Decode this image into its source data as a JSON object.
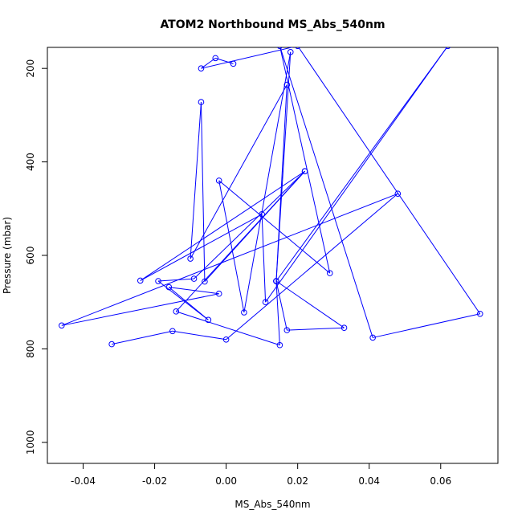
{
  "chart_data": {
    "type": "line",
    "title": "ATOM2 Northbound MS_Abs_540nm",
    "xlabel": "MS_Abs_540nm",
    "ylabel": "Pressure (mbar)",
    "xlim": [
      -0.05,
      0.076
    ],
    "ylim": [
      1045,
      155
    ],
    "y_reversed": true,
    "grid": false,
    "legend": "none",
    "colors": {
      "series": "#0000ff",
      "axis": "#000000",
      "background": "#ffffff"
    },
    "x_ticks": [
      {
        "value": -0.04,
        "label": "-0.04"
      },
      {
        "value": -0.02,
        "label": "-0.02"
      },
      {
        "value": 0.0,
        "label": "0.00"
      },
      {
        "value": 0.02,
        "label": "0.02"
      },
      {
        "value": 0.04,
        "label": "0.04"
      },
      {
        "value": 0.06,
        "label": "0.06"
      }
    ],
    "y_ticks": [
      {
        "value": 200,
        "label": "200"
      },
      {
        "value": 400,
        "label": "400"
      },
      {
        "value": 600,
        "label": "600"
      },
      {
        "value": 800,
        "label": "800"
      },
      {
        "value": 1000,
        "label": "1000"
      }
    ],
    "series": [
      {
        "points": [
          {
            "x": -0.032,
            "y": 790
          },
          {
            "x": -0.015,
            "y": 762
          },
          {
            "x": 0.0,
            "y": 780
          },
          {
            "x": 0.048,
            "y": 468
          },
          {
            "x": -0.046,
            "y": 750
          },
          {
            "x": -0.002,
            "y": 682
          },
          {
            "x": -0.016,
            "y": 668
          },
          {
            "x": -0.005,
            "y": 738
          },
          {
            "x": -0.019,
            "y": 655
          },
          {
            "x": -0.009,
            "y": 650
          },
          {
            "x": 0.022,
            "y": 420
          },
          {
            "x": -0.014,
            "y": 720
          },
          {
            "x": 0.015,
            "y": 792
          },
          {
            "x": 0.014,
            "y": 655
          },
          {
            "x": 0.017,
            "y": 235
          },
          {
            "x": -0.01,
            "y": 607
          },
          {
            "x": -0.007,
            "y": 272
          },
          {
            "x": -0.006,
            "y": 656
          },
          {
            "x": 0.022,
            "y": 420
          },
          {
            "x": -0.024,
            "y": 654
          },
          {
            "x": 0.01,
            "y": 512
          },
          {
            "x": 0.011,
            "y": 700
          },
          {
            "x": 0.062,
            "y": 152
          },
          {
            "x": 0.014,
            "y": 655
          },
          {
            "x": 0.017,
            "y": 760
          },
          {
            "x": 0.033,
            "y": 755
          },
          {
            "x": 0.014,
            "y": 655
          },
          {
            "x": 0.018,
            "y": 165
          },
          {
            "x": 0.005,
            "y": 722
          },
          {
            "x": -0.002,
            "y": 440
          },
          {
            "x": 0.029,
            "y": 638
          },
          {
            "x": 0.015,
            "y": 152
          },
          {
            "x": 0.041,
            "y": 776
          },
          {
            "x": 0.071,
            "y": 725
          },
          {
            "x": 0.02,
            "y": 152
          },
          {
            "x": -0.007,
            "y": 200
          },
          {
            "x": -0.003,
            "y": 178
          },
          {
            "x": 0.002,
            "y": 190
          }
        ]
      }
    ]
  }
}
